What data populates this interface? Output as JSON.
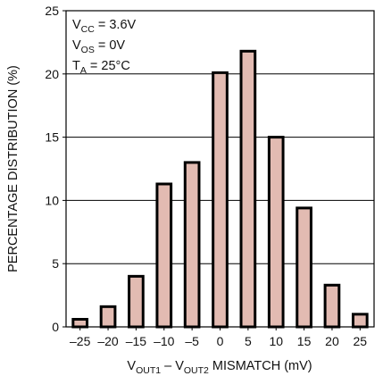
{
  "chart_data": {
    "type": "bar",
    "x": [
      -25,
      -20,
      -15,
      -10,
      -5,
      0,
      5,
      10,
      15,
      20,
      25
    ],
    "values": [
      0.6,
      1.6,
      4.0,
      11.3,
      13.0,
      20.1,
      21.8,
      15.0,
      9.4,
      3.3,
      1.0
    ],
    "x_tick_labels": [
      "–25",
      "–20",
      "–15",
      "–10",
      "–5",
      "0",
      "5",
      "10",
      "15",
      "20",
      "25"
    ],
    "y_ticks": [
      0,
      5,
      10,
      15,
      20,
      25
    ],
    "ylim": [
      0,
      25
    ],
    "xlim": [
      -27.5,
      27.5
    ],
    "grid": true,
    "ylabel": "PERCENTAGE DISTRIBUTION (%)",
    "xlabel": {
      "v1": "V",
      "v1_sub": "OUT1",
      "sep": " – ",
      "v2": "V",
      "v2_sub": "OUT2",
      "rest": " MISMATCH (mV)"
    },
    "annotations": [
      {
        "main": "V",
        "sub": "CC",
        "rest": " = 3.6V"
      },
      {
        "main": "V",
        "sub": "OS",
        "rest": " = 0V"
      },
      {
        "main": "T",
        "sub": "A",
        "rest": " = 25°C"
      }
    ],
    "colors": {
      "bar_fill": "#e2bbb2",
      "bar_stroke": "#000000",
      "grid": "#000000"
    }
  }
}
